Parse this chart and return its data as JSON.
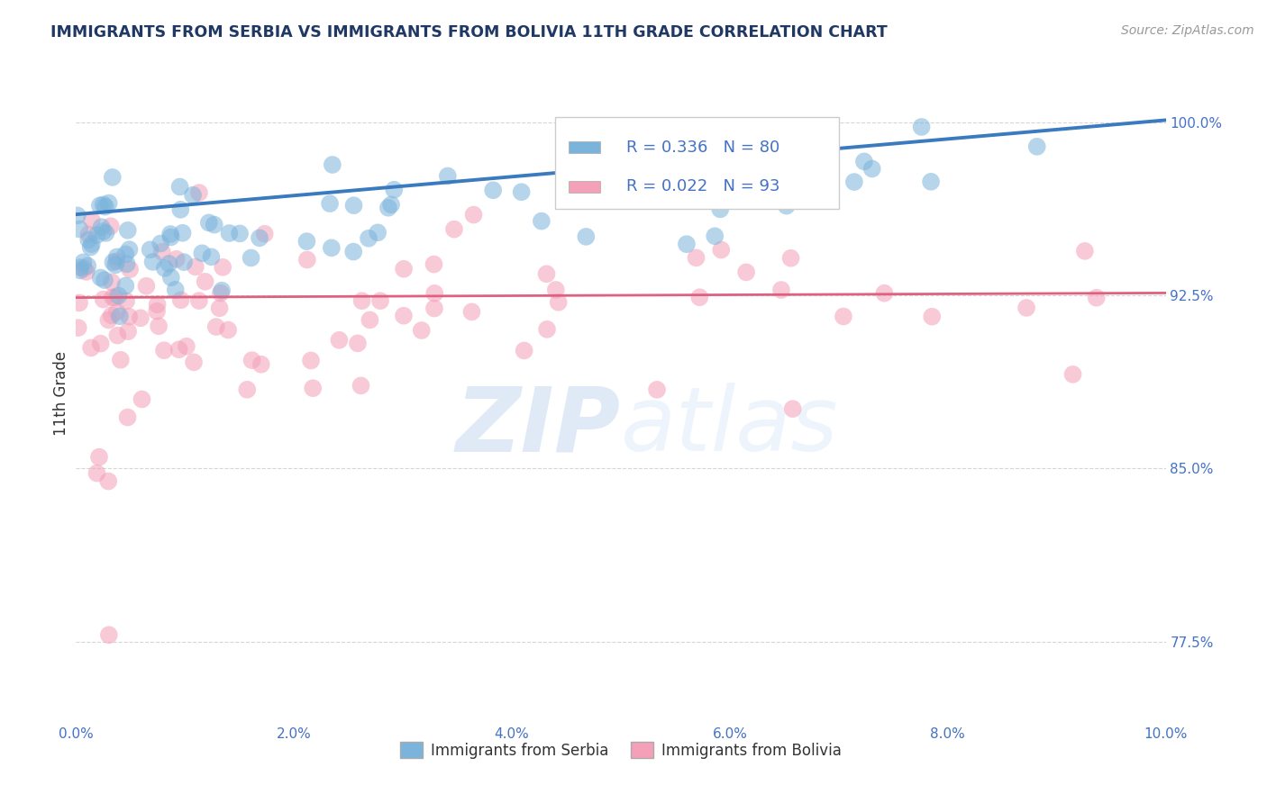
{
  "title": "IMMIGRANTS FROM SERBIA VS IMMIGRANTS FROM BOLIVIA 11TH GRADE CORRELATION CHART",
  "source": "Source: ZipAtlas.com",
  "ylabel": "11th Grade",
  "x_min": 0.0,
  "x_max": 10.0,
  "y_min": 74.0,
  "y_max": 102.5,
  "y_ticks": [
    77.5,
    85.0,
    92.5,
    100.0
  ],
  "serbia_R": 0.336,
  "serbia_N": 80,
  "bolivia_R": 0.022,
  "bolivia_N": 93,
  "serbia_color": "#7ab4dc",
  "bolivia_color": "#f4a0b8",
  "serbia_line_color": "#3a7abf",
  "bolivia_line_color": "#e06080",
  "legend_serbia": "Immigrants from Serbia",
  "legend_bolivia": "Immigrants from Bolivia",
  "watermark_zip": "ZIP",
  "watermark_atlas": "atlas",
  "background_color": "#ffffff",
  "grid_color": "#cccccc",
  "tick_color": "#4472c4",
  "title_color": "#1f3864",
  "legend_r_color": "#4472c4"
}
